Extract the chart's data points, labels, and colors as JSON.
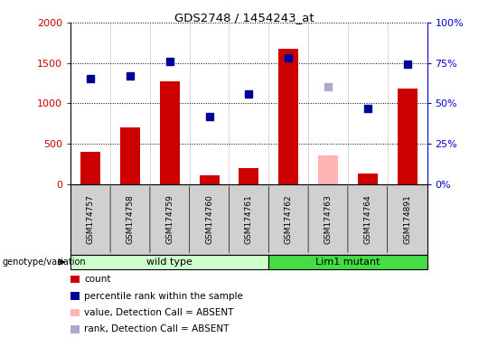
{
  "title": "GDS2748 / 1454243_at",
  "samples": [
    "GSM174757",
    "GSM174758",
    "GSM174759",
    "GSM174760",
    "GSM174761",
    "GSM174762",
    "GSM174763",
    "GSM174764",
    "GSM174891"
  ],
  "counts": [
    400,
    700,
    1270,
    110,
    200,
    1680,
    null,
    130,
    1180
  ],
  "absent_counts": [
    null,
    null,
    null,
    null,
    null,
    null,
    350,
    null,
    null
  ],
  "percentile_ranks": [
    65,
    67,
    76,
    42,
    56,
    78,
    null,
    47,
    74
  ],
  "absent_ranks": [
    null,
    null,
    null,
    null,
    null,
    null,
    60,
    null,
    null
  ],
  "count_color": "#cc0000",
  "absent_count_color": "#ffb3b3",
  "rank_color": "#000099",
  "absent_rank_color": "#aaaacc",
  "ylim_left": [
    0,
    2000
  ],
  "ylim_right": [
    0,
    100
  ],
  "yticks_left": [
    0,
    500,
    1000,
    1500,
    2000
  ],
  "yticks_right": [
    0,
    25,
    50,
    75,
    100
  ],
  "yticklabels_left": [
    "0",
    "500",
    "1000",
    "1500",
    "2000"
  ],
  "yticklabels_right": [
    "0%",
    "25%",
    "50%",
    "75%",
    "100%"
  ],
  "wild_type_label": "wild type",
  "lim1_label": "Lim1 mutant",
  "genotype_label": "genotype/variation",
  "wild_type_color": "#ccffcc",
  "lim1_color": "#44dd44",
  "legend_items": [
    {
      "label": "count",
      "color": "#cc0000"
    },
    {
      "label": "percentile rank within the sample",
      "color": "#000099"
    },
    {
      "label": "value, Detection Call = ABSENT",
      "color": "#ffb3b3"
    },
    {
      "label": "rank, Detection Call = ABSENT",
      "color": "#aaaacc"
    }
  ],
  "bar_width": 0.5,
  "marker_size": 6,
  "xlabel_color": "#cc0000",
  "ylabel_right_color": "#0000cc",
  "gray_bg": "#d0d0d0"
}
